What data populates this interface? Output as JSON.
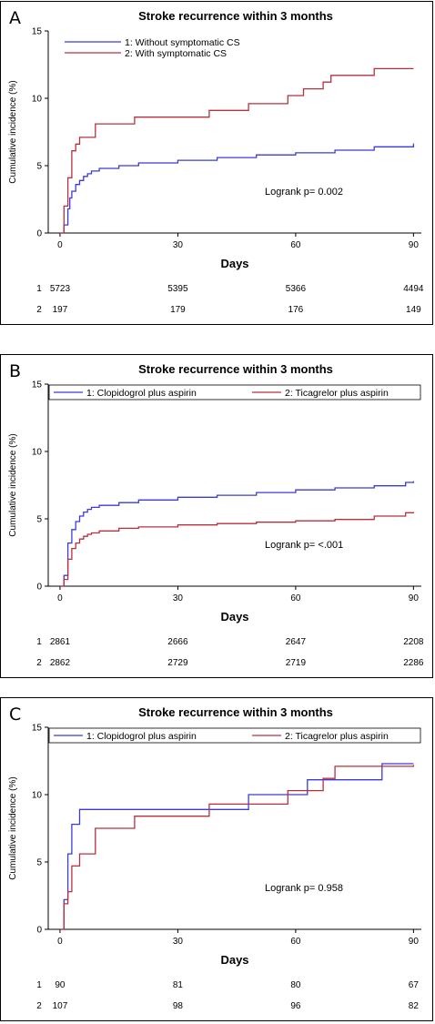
{
  "colors": {
    "series1": "#3b3bdb",
    "series2": "#b8303f",
    "axis": "#000000"
  },
  "chart_data": [
    {
      "type": "line",
      "panel_letter": "A",
      "title": "Stroke recurrence within 3 months",
      "xlabel": "Days",
      "ylabel": "Cumulative incidence (%)",
      "xlim": [
        -3,
        92
      ],
      "ylim": [
        0,
        15
      ],
      "xticks": [
        0,
        30,
        60,
        90
      ],
      "yticks": [
        0,
        5,
        10,
        15
      ],
      "legend_placement": "top-left",
      "legend_boxed": false,
      "annotation": "Logrank p= 0.002",
      "series": [
        {
          "name": "1: Without   symptomatic CS",
          "x": [
            0,
            1,
            2,
            2.5,
            3,
            4,
            5,
            6,
            7,
            8,
            10,
            15,
            20,
            30,
            40,
            50,
            60,
            70,
            80,
            90
          ],
          "y": [
            0,
            0.6,
            1.8,
            2.6,
            3.1,
            3.6,
            3.9,
            4.2,
            4.4,
            4.6,
            4.8,
            5.0,
            5.2,
            5.4,
            5.6,
            5.8,
            5.95,
            6.15,
            6.4,
            6.65
          ]
        },
        {
          "name": "2: With symptomatic CS",
          "x": [
            0,
            1,
            2,
            3,
            4,
            5,
            9,
            19,
            38,
            48,
            58,
            62,
            67,
            69,
            80,
            90
          ],
          "y": [
            0,
            2.0,
            4.1,
            6.1,
            6.6,
            7.1,
            8.1,
            8.6,
            9.1,
            9.6,
            10.2,
            10.7,
            11.2,
            11.7,
            12.2,
            12.2
          ]
        }
      ],
      "risk_table": {
        "x": [
          0,
          30,
          60,
          90
        ],
        "rows": [
          {
            "label": "1",
            "values": [
              "5723",
              "5395",
              "5366",
              "4494"
            ]
          },
          {
            "label": "2",
            "values": [
              "197",
              "179",
              "176",
              "149"
            ]
          }
        ]
      }
    },
    {
      "type": "line",
      "panel_letter": "B",
      "title": "Stroke recurrence within 3 months",
      "xlabel": "Days",
      "ylabel": "Cumulative incidence (%)",
      "xlim": [
        -3,
        92
      ],
      "ylim": [
        0,
        15
      ],
      "xticks": [
        0,
        30,
        60,
        90
      ],
      "yticks": [
        0,
        5,
        10,
        15
      ],
      "legend_placement": "top",
      "legend_boxed": true,
      "annotation": "Logrank p= <.001",
      "series": [
        {
          "name": "1: Clopidogrol plus aspirin",
          "x": [
            0,
            1,
            2,
            3,
            4,
            5,
            6,
            7,
            8,
            10,
            15,
            20,
            30,
            40,
            50,
            60,
            70,
            80,
            88,
            90
          ],
          "y": [
            0,
            0.8,
            3.2,
            4.2,
            4.8,
            5.2,
            5.5,
            5.7,
            5.85,
            6.0,
            6.2,
            6.4,
            6.6,
            6.75,
            6.95,
            7.15,
            7.3,
            7.45,
            7.7,
            7.8
          ]
        },
        {
          "name": "2: Ticagrelor plus aspirin",
          "x": [
            0,
            1,
            2,
            3,
            4,
            5,
            6,
            7,
            8,
            10,
            15,
            20,
            30,
            40,
            50,
            60,
            70,
            80,
            88,
            90
          ],
          "y": [
            0,
            0.5,
            2.0,
            2.8,
            3.2,
            3.5,
            3.7,
            3.85,
            3.95,
            4.1,
            4.3,
            4.4,
            4.55,
            4.65,
            4.75,
            4.85,
            4.95,
            5.2,
            5.45,
            5.5
          ]
        }
      ],
      "risk_table": {
        "x": [
          0,
          30,
          60,
          90
        ],
        "rows": [
          {
            "label": "1",
            "values": [
              "2861",
              "2666",
              "2647",
              "2208"
            ]
          },
          {
            "label": "2",
            "values": [
              "2862",
              "2729",
              "2719",
              "2286"
            ]
          }
        ]
      }
    },
    {
      "type": "line",
      "panel_letter": "C",
      "title": "Stroke recurrence within 3 months",
      "xlabel": "Days",
      "ylabel": "Cumulative incidence (%)",
      "xlim": [
        -3,
        92
      ],
      "ylim": [
        0,
        15
      ],
      "xticks": [
        0,
        30,
        60,
        90
      ],
      "yticks": [
        0,
        5,
        10,
        15
      ],
      "legend_placement": "top",
      "legend_boxed": true,
      "annotation": "Logrank p= 0.958",
      "series": [
        {
          "name": "1: Clopidogrol plus aspirin",
          "x": [
            0,
            1,
            2,
            3,
            5,
            48,
            63,
            82,
            90
          ],
          "y": [
            0,
            2.2,
            5.6,
            7.8,
            8.9,
            10.0,
            11.1,
            12.3,
            12.3
          ]
        },
        {
          "name": "2: Ticagrelor plus aspirin",
          "x": [
            0,
            1,
            2,
            3,
            5,
            9,
            19,
            38,
            58,
            67,
            70,
            90
          ],
          "y": [
            0,
            1.9,
            2.8,
            4.7,
            5.6,
            7.5,
            8.4,
            9.3,
            10.3,
            11.2,
            12.1,
            12.2
          ]
        }
      ],
      "risk_table": {
        "x": [
          0,
          30,
          60,
          90
        ],
        "rows": [
          {
            "label": "1",
            "values": [
              "90",
              "81",
              "80",
              "67"
            ]
          },
          {
            "label": "2",
            "values": [
              "107",
              "98",
              "96",
              "82"
            ]
          }
        ]
      }
    }
  ]
}
